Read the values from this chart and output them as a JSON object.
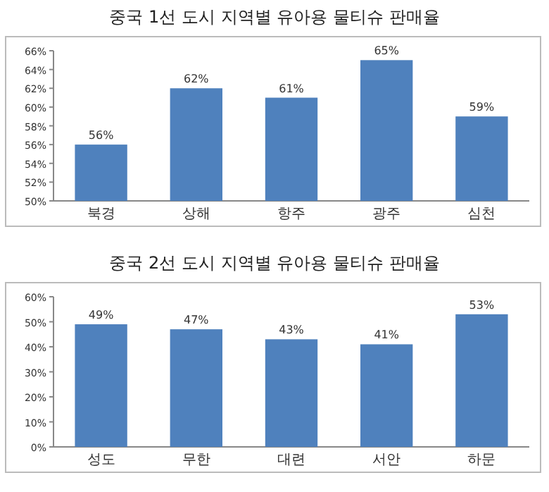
{
  "chart_data": [
    {
      "type": "bar",
      "title": "중국 1선 도시 지역별 유아용 물티슈 판매율",
      "categories": [
        "북경",
        "상해",
        "항주",
        "광주",
        "심천"
      ],
      "values": [
        56,
        62,
        61,
        65,
        59
      ],
      "color": "#4f81bd",
      "ylim": [
        50,
        66
      ],
      "yticks": [
        {
          "value": 50,
          "label": "50%"
        },
        {
          "value": 52,
          "label": "52%"
        },
        {
          "value": 54,
          "label": "54%"
        },
        {
          "value": 56,
          "label": "56%"
        },
        {
          "value": 58,
          "label": "58%"
        },
        {
          "value": 60,
          "label": "60%"
        },
        {
          "value": 62,
          "label": "62%"
        },
        {
          "value": 64,
          "label": "64%"
        },
        {
          "value": 66,
          "label": "66%"
        }
      ],
      "value_labels": [
        "56%",
        "62%",
        "61%",
        "65%",
        "59%"
      ],
      "grid": false
    },
    {
      "type": "bar",
      "title": "중국 2선 도시 지역별 유아용 물티슈 판매율",
      "categories": [
        "성도",
        "무한",
        "대련",
        "서안",
        "하문"
      ],
      "values": [
        49,
        47,
        43,
        41,
        53
      ],
      "color": "#4f81bd",
      "ylim": [
        0,
        60
      ],
      "yticks": [
        {
          "value": 0,
          "label": "0%"
        },
        {
          "value": 10,
          "label": "10%"
        },
        {
          "value": 20,
          "label": "20%"
        },
        {
          "value": 30,
          "label": "30%"
        },
        {
          "value": 40,
          "label": "40%"
        },
        {
          "value": 50,
          "label": "50%"
        },
        {
          "value": 60,
          "label": "60%"
        }
      ],
      "value_labels": [
        "49%",
        "47%",
        "43%",
        "41%",
        "53%"
      ],
      "grid": false
    }
  ]
}
